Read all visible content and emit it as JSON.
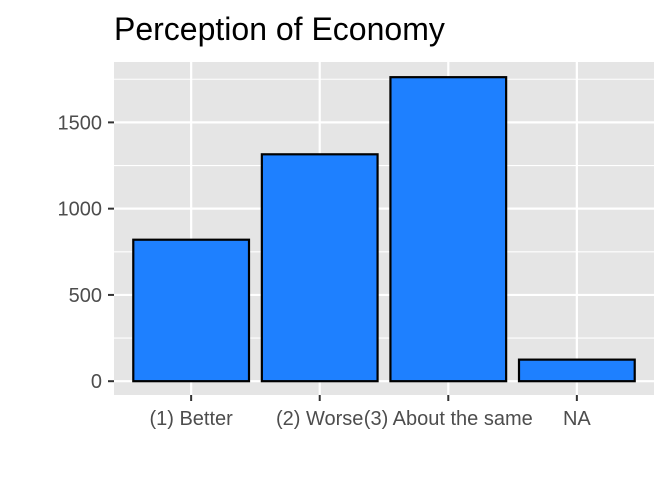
{
  "chart_data": {
    "type": "bar",
    "title": "Perception of Economy",
    "xlabel": "",
    "ylabel": "",
    "categories": [
      "(1) Better",
      "(2) Worse",
      "(3) About the same",
      "NA"
    ],
    "values": [
      820,
      1315,
      1762,
      125
    ],
    "ylim": [
      -80,
      1850
    ],
    "yticks": [
      0,
      500,
      1000,
      1500
    ],
    "ytick_labels": [
      "0",
      "500",
      "1000",
      "1500"
    ],
    "grid": true,
    "legend": "none",
    "colors": {
      "bar_fill": "#1E80FF",
      "bar_stroke": "#000000",
      "panel_bg": "#E5E5E5",
      "grid": "#FFFFFF",
      "tick": "#333333",
      "tick_text": "#4D4D4D"
    }
  }
}
